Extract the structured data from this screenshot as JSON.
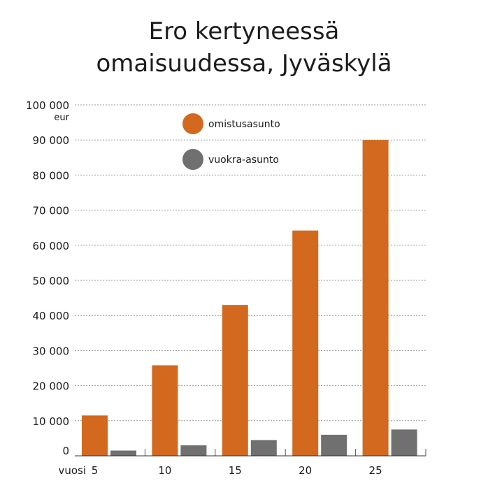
{
  "chart_data": {
    "type": "bar",
    "title_lines": [
      "Ero kertyneessä",
      "omaisuudessa, Jyväskylä"
    ],
    "xlabel": "vuosi",
    "ylabel": "eur",
    "categories": [
      "5",
      "10",
      "15",
      "20",
      "25"
    ],
    "series": [
      {
        "name": "omistusasunto",
        "values": [
          11500,
          25800,
          43000,
          64200,
          90000
        ],
        "color": "#d2691e"
      },
      {
        "name": "vuokra-asunto",
        "values": [
          1500,
          3000,
          4500,
          6000,
          7500
        ],
        "color": "#707070"
      }
    ],
    "ylim": [
      0,
      100000
    ],
    "yticks": [
      0,
      10000,
      20000,
      30000,
      40000,
      50000,
      60000,
      70000,
      80000,
      90000,
      100000
    ],
    "ytick_labels": [
      "0",
      "10 000",
      "20 000",
      "30 000",
      "40 000",
      "50 000",
      "60 000",
      "70 000",
      "80 000",
      "90 000",
      "100 000"
    ],
    "grid": true,
    "grid_style": "dashed",
    "legend_position": "top-left"
  }
}
